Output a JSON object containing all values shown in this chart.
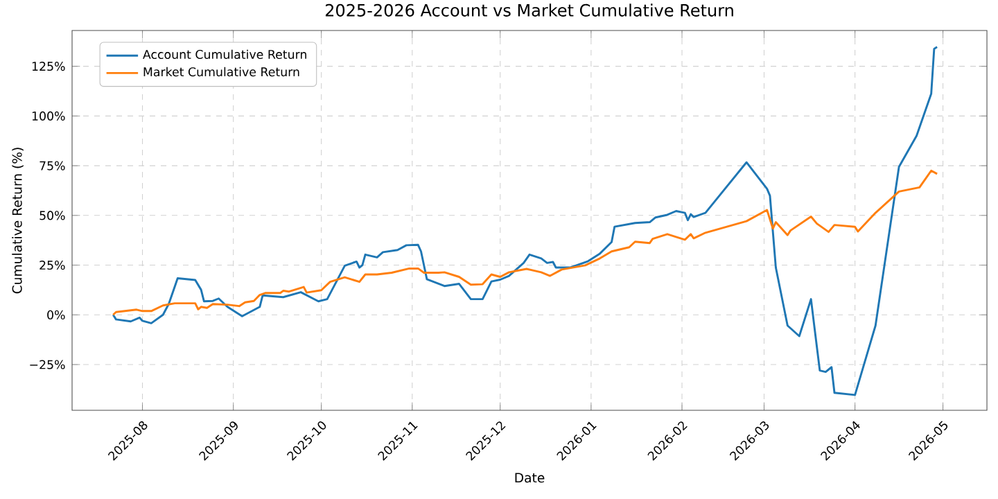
{
  "chart_data": {
    "type": "line",
    "title": "2025-2026 Account vs Market Cumulative Return",
    "xlabel": "Date",
    "ylabel": "Cumulative Return (%)",
    "xlim": [
      "2025-07-08",
      "2026-05-16"
    ],
    "xticks": [
      "2025-08",
      "2025-09",
      "2025-10",
      "2025-11",
      "2025-12",
      "2026-01",
      "2026-02",
      "2026-03",
      "2026-04",
      "2026-05"
    ],
    "ylim": [
      -48,
      143
    ],
    "yticks": [
      {
        "value": -25,
        "label": "−25%"
      },
      {
        "value": 0,
        "label": "0%"
      },
      {
        "value": 25,
        "label": "25%"
      },
      {
        "value": 50,
        "label": "50%"
      },
      {
        "value": 75,
        "label": "75%"
      },
      {
        "value": 100,
        "label": "100%"
      },
      {
        "value": 125,
        "label": "125%"
      }
    ],
    "grid": true,
    "legend": "top left",
    "marker": "none",
    "line_style": "solid",
    "series": [
      {
        "name": "Account Cumulative Return",
        "color": "#1f77b4",
        "x": [
          "2025-07-22",
          "2025-07-23",
          "2025-07-28",
          "2025-07-31",
          "2025-08-01",
          "2025-08-04",
          "2025-08-08",
          "2025-08-10",
          "2025-08-13",
          "2025-08-19",
          "2025-08-21",
          "2025-08-22",
          "2025-08-25",
          "2025-08-27",
          "2025-08-30",
          "2025-09-04",
          "2025-09-10",
          "2025-09-11",
          "2025-09-18",
          "2025-09-24",
          "2025-09-30",
          "2025-10-03",
          "2025-10-09",
          "2025-10-13",
          "2025-10-14",
          "2025-10-15",
          "2025-10-16",
          "2025-10-20",
          "2025-10-22",
          "2025-10-27",
          "2025-10-30",
          "2025-11-03",
          "2025-11-04",
          "2025-11-06",
          "2025-11-12",
          "2025-11-17",
          "2025-11-21",
          "2025-11-25",
          "2025-11-28",
          "2025-12-01",
          "2025-12-04",
          "2025-12-09",
          "2025-12-11",
          "2025-12-15",
          "2025-12-17",
          "2025-12-19",
          "2025-12-20",
          "2025-12-25",
          "2025-12-31",
          "2026-01-04",
          "2026-01-08",
          "2026-01-09",
          "2026-01-16",
          "2026-01-21",
          "2026-01-23",
          "2026-01-27",
          "2026-01-30",
          "2026-02-02",
          "2026-02-03",
          "2026-02-04",
          "2026-02-05",
          "2026-02-09",
          "2026-02-23",
          "2026-03-02",
          "2026-03-03",
          "2026-03-05",
          "2026-03-09",
          "2026-03-13",
          "2026-03-17",
          "2026-03-18",
          "2026-03-20",
          "2026-03-22",
          "2026-03-24",
          "2026-03-25",
          "2026-04-01",
          "2026-04-08",
          "2026-04-16",
          "2026-04-22",
          "2026-04-27",
          "2026-04-28",
          "2026-04-29"
        ],
        "values": [
          0,
          -2.3,
          -3.3,
          -1.4,
          -3,
          -4.2,
          0,
          5.6,
          18.4,
          17.5,
          12.6,
          6.8,
          7,
          8.2,
          4,
          -0.7,
          4,
          9.8,
          8.9,
          11.4,
          6.8,
          7.9,
          24.7,
          26.8,
          23.8,
          25,
          30.3,
          28.9,
          31.5,
          32.6,
          35,
          35.2,
          31.9,
          17.9,
          14.5,
          15.6,
          7.9,
          7.9,
          16.8,
          17.7,
          19.6,
          26.1,
          30.3,
          28.4,
          26.1,
          26.6,
          23.8,
          23.8,
          27,
          30.8,
          36.6,
          44.3,
          46.2,
          46.6,
          49,
          50.3,
          52.2,
          51.3,
          47.6,
          50.6,
          49.2,
          51.3,
          76.7,
          63.4,
          59.9,
          23.8,
          -5.4,
          -10.7,
          7.9,
          -4.2,
          -28,
          -28.7,
          -26.3,
          -39.2,
          -40.3,
          -5.4,
          74.4,
          90,
          111.2,
          133.8,
          134.7
        ]
      },
      {
        "name": "Market Cumulative Return",
        "color": "#ff7f0e",
        "x": [
          "2025-07-22",
          "2025-07-23",
          "2025-07-30",
          "2025-08-01",
          "2025-08-04",
          "2025-08-08",
          "2025-08-12",
          "2025-08-19",
          "2025-08-20",
          "2025-08-21",
          "2025-08-23",
          "2025-08-25",
          "2025-08-30",
          "2025-09-03",
          "2025-09-05",
          "2025-09-08",
          "2025-09-10",
          "2025-09-12",
          "2025-09-17",
          "2025-09-18",
          "2025-09-20",
          "2025-09-25",
          "2025-09-26",
          "2025-10-01",
          "2025-10-04",
          "2025-10-09",
          "2025-10-14",
          "2025-10-16",
          "2025-10-20",
          "2025-10-25",
          "2025-10-31",
          "2025-11-03",
          "2025-11-05",
          "2025-11-10",
          "2025-11-12",
          "2025-11-17",
          "2025-11-21",
          "2025-11-25",
          "2025-11-28",
          "2025-12-01",
          "2025-12-04",
          "2025-12-10",
          "2025-12-15",
          "2025-12-18",
          "2025-12-22",
          "2025-12-30",
          "2026-01-04",
          "2026-01-08",
          "2026-01-14",
          "2026-01-16",
          "2026-01-21",
          "2026-01-22",
          "2026-01-27",
          "2026-02-02",
          "2026-02-04",
          "2026-02-05",
          "2026-02-09",
          "2026-02-23",
          "2026-03-02",
          "2026-03-04",
          "2026-03-05",
          "2026-03-09",
          "2026-03-10",
          "2026-03-17",
          "2026-03-19",
          "2026-03-23",
          "2026-03-25",
          "2026-04-01",
          "2026-04-02",
          "2026-04-08",
          "2026-04-16",
          "2026-04-23",
          "2026-04-27",
          "2026-04-29"
        ],
        "values": [
          0,
          1.4,
          2.6,
          1.9,
          1.9,
          4.7,
          5.8,
          5.8,
          2.8,
          4,
          3.5,
          5.4,
          5.1,
          4.4,
          6.3,
          7,
          10,
          11,
          11,
          12.1,
          11.7,
          14,
          11.2,
          12.4,
          16.6,
          18.9,
          16.6,
          20.3,
          20.3,
          21.2,
          23.3,
          23.3,
          21.2,
          21.2,
          21.4,
          19.1,
          15.2,
          15.4,
          20.3,
          19.1,
          21.4,
          23.1,
          21.4,
          19.6,
          22.8,
          24.9,
          28.4,
          31.9,
          34,
          36.8,
          36.1,
          38.2,
          40.6,
          37.8,
          40.6,
          38.5,
          41.3,
          47.1,
          52.7,
          43.4,
          46.6,
          40.1,
          42.4,
          49.4,
          45.9,
          41.7,
          45.2,
          44.3,
          41.9,
          51.3,
          62,
          64.1,
          72.5,
          70.9
        ]
      }
    ]
  }
}
